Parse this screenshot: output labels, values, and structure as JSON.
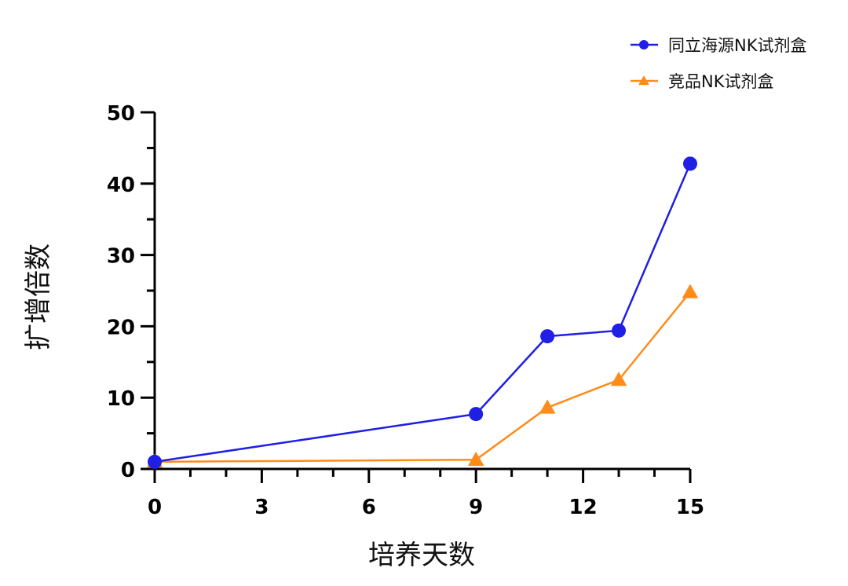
{
  "chart_data": {
    "type": "line",
    "xlabel": "培养天数",
    "ylabel": "扩增倍数",
    "xlim": [
      0,
      15
    ],
    "ylim": [
      0,
      50
    ],
    "x_ticks": [
      0,
      3,
      6,
      9,
      12,
      15
    ],
    "y_ticks": [
      0,
      10,
      20,
      30,
      40,
      50
    ],
    "grid": false,
    "legend_position": "top-right",
    "series": [
      {
        "name": "同立海源NK试剂盒",
        "color": "#1f1fe6",
        "marker": "circle",
        "x": [
          0,
          9,
          11,
          13,
          15
        ],
        "y": [
          1.0,
          7.7,
          18.6,
          19.4,
          42.8
        ]
      },
      {
        "name": "竞品NK试剂盒",
        "color": "#ff8c1a",
        "marker": "triangle",
        "x": [
          0,
          9,
          11,
          13,
          15
        ],
        "y": [
          1.0,
          1.3,
          8.6,
          12.5,
          24.8
        ]
      }
    ]
  }
}
